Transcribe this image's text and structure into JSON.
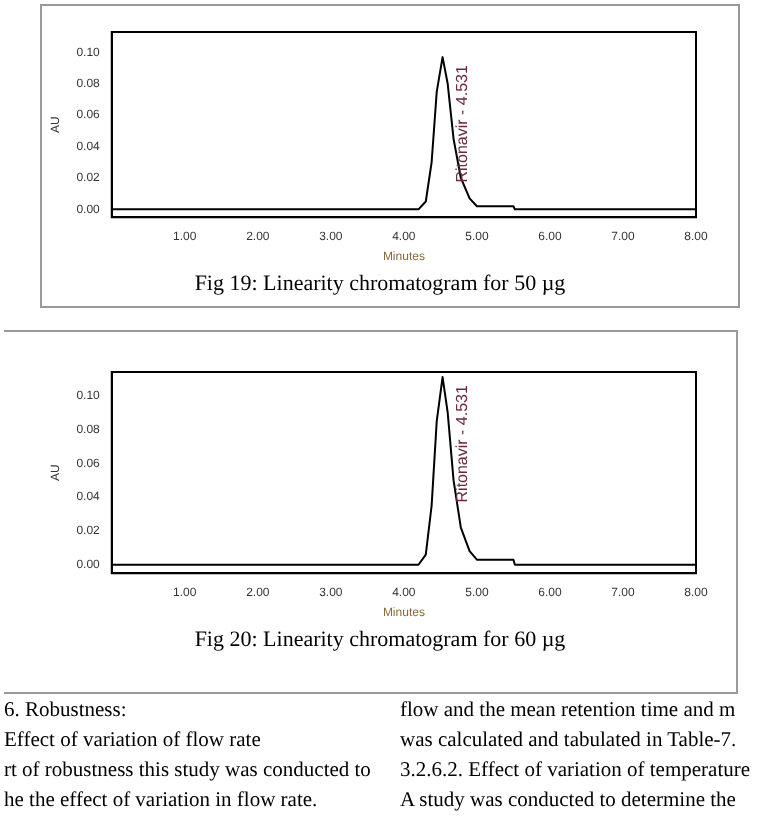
{
  "chart_data": [
    {
      "type": "line",
      "title": "Fig 19: Linearity chromatogram for 50 µg",
      "xlabel": "Minutes",
      "ylabel": "AU",
      "color": "#000000",
      "x": [
        0,
        4.2,
        4.3,
        4.38,
        4.45,
        4.53,
        4.6,
        4.68,
        4.78,
        4.9,
        5.0,
        5.5,
        5.52,
        8
      ],
      "values": [
        0,
        0,
        0.005,
        0.03,
        0.075,
        0.097,
        0.08,
        0.045,
        0.02,
        0.007,
        0.002,
        0.002,
        0,
        0
      ],
      "xlim": [
        0,
        8
      ],
      "ylim": [
        -0.005,
        0.113
      ],
      "xticks": [
        {
          "value": 1,
          "label": "1.00"
        },
        {
          "value": 2,
          "label": "2.00"
        },
        {
          "value": 3,
          "label": "3.00"
        },
        {
          "value": 4,
          "label": "4.00"
        },
        {
          "value": 5,
          "label": "5.00"
        },
        {
          "value": 6,
          "label": "6.00"
        },
        {
          "value": 7,
          "label": "7.00"
        },
        {
          "value": 8,
          "label": "8.00"
        }
      ],
      "yticks": [
        {
          "value": 0,
          "label": "0.00"
        },
        {
          "value": 0.02,
          "label": "0.02"
        },
        {
          "value": 0.04,
          "label": "0.04"
        },
        {
          "value": 0.06,
          "label": "0.06"
        },
        {
          "value": 0.08,
          "label": "0.08"
        },
        {
          "value": 0.1,
          "label": "0.10"
        }
      ],
      "annotations": [
        {
          "text": "Ritonavir - 4.531",
          "x": 4.531,
          "y": 0.097
        }
      ],
      "grid": false,
      "legend": false,
      "marker": "none"
    },
    {
      "type": "line",
      "title": "Fig 20: Linearity chromatogram for 60 µg",
      "xlabel": "Minutes",
      "ylabel": "AU",
      "color": "#000000",
      "x": [
        0,
        4.2,
        4.3,
        4.38,
        4.45,
        4.53,
        4.6,
        4.68,
        4.78,
        4.9,
        5.0,
        5.5,
        5.52,
        8
      ],
      "values": [
        0,
        0,
        0.006,
        0.035,
        0.085,
        0.111,
        0.09,
        0.05,
        0.022,
        0.008,
        0.003,
        0.003,
        0,
        0
      ],
      "xlim": [
        0,
        8
      ],
      "ylim": [
        -0.005,
        0.114
      ],
      "xticks": [
        {
          "value": 1,
          "label": "1.00"
        },
        {
          "value": 2,
          "label": "2.00"
        },
        {
          "value": 3,
          "label": "3.00"
        },
        {
          "value": 4,
          "label": "4.00"
        },
        {
          "value": 5,
          "label": "5.00"
        },
        {
          "value": 6,
          "label": "6.00"
        },
        {
          "value": 7,
          "label": "7.00"
        },
        {
          "value": 8,
          "label": "8.00"
        }
      ],
      "yticks": [
        {
          "value": 0,
          "label": "0.00"
        },
        {
          "value": 0.02,
          "label": "0.02"
        },
        {
          "value": 0.04,
          "label": "0.04"
        },
        {
          "value": 0.06,
          "label": "0.06"
        },
        {
          "value": 0.08,
          "label": "0.08"
        },
        {
          "value": 0.1,
          "label": "0.10"
        }
      ],
      "annotations": [
        {
          "text": "Ritonavir - 4.531",
          "x": 4.531,
          "y": 0.111
        },
        "6. Robustness:",
        "Effect of variation of flow rate",
        "rt of robustness this study was conducted to",
        "he the effect of variation in flow rate.",
        "flow and the mean retention time and m",
        "was calculated and tabulated in Table-7.",
        "3.2.6.2. Effect of variation of temperature",
        "A study was conducted to determine the"
      ],
      "grid": false,
      "legend": false,
      "marker": "none"
    }
  ]
}
